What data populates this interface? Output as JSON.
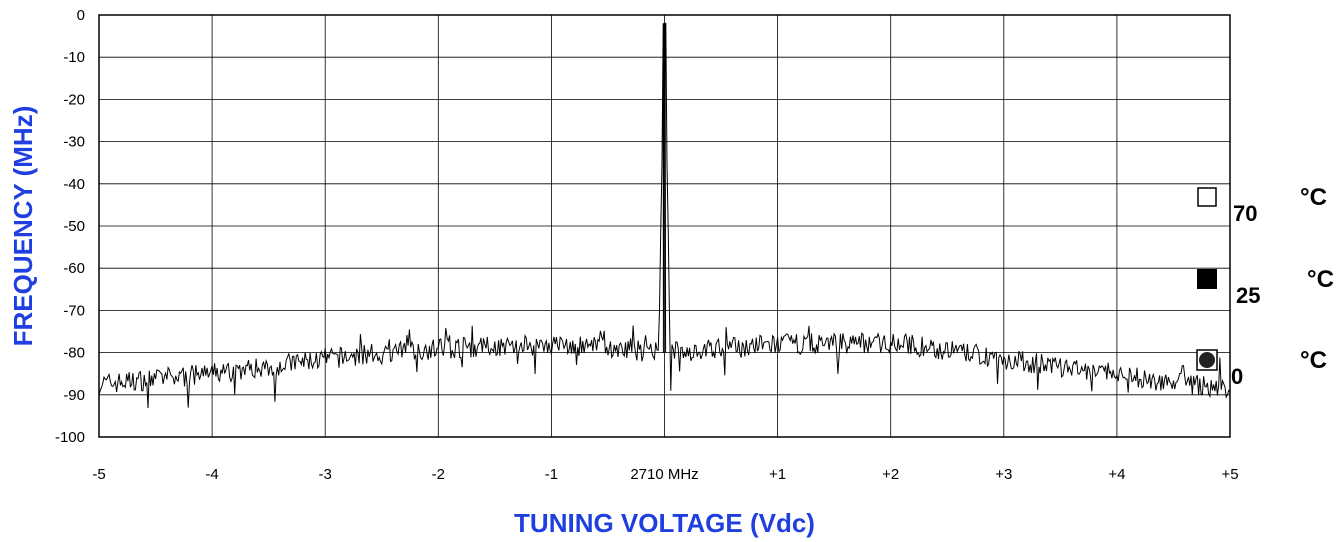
{
  "chart_data": {
    "type": "line",
    "xlabel": "TUNING VOLTAGE (Vdc)",
    "ylabel": "FREQUENCY (MHz)",
    "xlim": [
      -5,
      5
    ],
    "ylim": [
      -100,
      0
    ],
    "x_ticks": [
      -5,
      -4,
      -3,
      -2,
      -1,
      0,
      1,
      2,
      3,
      4,
      5
    ],
    "x_tick_labels": [
      "-5",
      "-4",
      "-3",
      "-2",
      "-1",
      "2710 MHz",
      "+1",
      "+2",
      "+3",
      "+4",
      "+5"
    ],
    "y_ticks": [
      0,
      -10,
      -20,
      -30,
      -40,
      -50,
      -60,
      -70,
      -80,
      -90,
      -100
    ],
    "y_tick_labels": [
      "0",
      "-10",
      "-20",
      "-30",
      "-40",
      "-50",
      "-60",
      "-70",
      "-80",
      "-90",
      "-100"
    ],
    "grid": true,
    "legend_position": "right",
    "colors": {
      "axis_title": "#1f3fe0",
      "line": "#000000"
    },
    "series": [
      {
        "profile_x": [
          -5,
          -4,
          -3,
          -2,
          -1,
          -0.05,
          0,
          0.05,
          1,
          2,
          3,
          4,
          5
        ],
        "profile_y": [
          -87.5,
          -85,
          -81.5,
          -79,
          -78,
          -80,
          -2,
          -80,
          -78,
          -77.5,
          -81.5,
          -85.5,
          -88.5
        ],
        "noise_amplitude": 2.5
      }
    ],
    "legend": [
      {
        "marker": "open-square",
        "label": "70",
        "unit": "°C"
      },
      {
        "marker": "filled-square",
        "label": "25",
        "unit": "°C"
      },
      {
        "marker": "circle-in-square",
        "label": "0",
        "unit": "°C"
      }
    ]
  }
}
